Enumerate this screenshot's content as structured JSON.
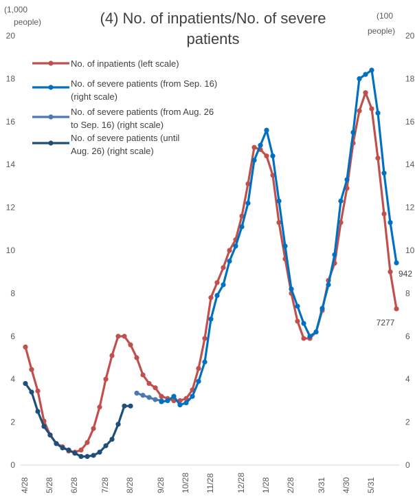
{
  "chart_data": {
    "type": "line",
    "title": [
      "(4) No. of inpatients/No. of severe",
      "patients"
    ],
    "left_axis_unit": [
      "(1,000",
      "people)"
    ],
    "right_axis_unit": [
      "(100",
      "people)"
    ],
    "ylim": [
      0,
      20
    ],
    "left_ticks": [
      "0",
      "2",
      "4",
      "6",
      "8",
      "10",
      "12",
      "14",
      "16",
      "18",
      "20"
    ],
    "right_ticks": [
      "0",
      "2",
      "4",
      "6",
      "8",
      "10",
      "12",
      "14",
      "16",
      "18",
      "20"
    ],
    "x_labels": [
      {
        "label": "4/28",
        "index": 0
      },
      {
        "label": "5/28",
        "index": 4
      },
      {
        "label": "6/28",
        "index": 8
      },
      {
        "label": "7/28",
        "index": 13
      },
      {
        "label": "8/28",
        "index": 17
      },
      {
        "label": "9/28",
        "index": 22
      },
      {
        "label": "10/28",
        "index": 26
      },
      {
        "label": "11/28",
        "index": 30
      },
      {
        "label": "12/28",
        "index": 35
      },
      {
        "label": "1/28",
        "index": 39
      },
      {
        "label": "2/28",
        "index": 43
      },
      {
        "label": "3/31",
        "index": 48
      },
      {
        "label": "4/30",
        "index": 52
      },
      {
        "label": "5/31",
        "index": 56
      }
    ],
    "grid": false,
    "legend_position": "top-left",
    "series": [
      {
        "key": "inpatients",
        "name": "No. of inpatients (left scale)",
        "color": "#c0504d",
        "start_index": 0,
        "values": [
          5.5,
          4.45,
          3.45,
          2.05,
          1.4,
          1.0,
          0.85,
          0.65,
          0.6,
          0.7,
          1.05,
          1.7,
          2.7,
          4.0,
          5.1,
          6.0,
          6.0,
          5.6,
          5.0,
          4.2,
          3.8,
          3.6,
          3.2,
          3.1,
          3.0,
          3.0,
          3.1,
          3.5,
          4.5,
          5.9,
          7.8,
          8.5,
          9.2,
          10.0,
          10.5,
          11.6,
          13.1,
          14.8,
          14.7,
          14.4,
          13.5,
          11.3,
          9.6,
          8.0,
          6.7,
          5.9,
          5.9,
          6.2,
          7.2,
          8.6,
          9.4,
          11.3,
          12.9,
          15.0,
          16.5,
          17.35,
          16.6,
          14.3,
          11.7,
          9.0,
          7.277
        ],
        "end_label": "7277"
      },
      {
        "key": "severe_from_sep16",
        "name": "No. of severe patients (from Sep. 16) (right scale)",
        "color": "#0070c0",
        "start_index": 22,
        "values": [
          2.95,
          3.0,
          3.2,
          2.8,
          2.9,
          3.2,
          3.9,
          4.8,
          6.8,
          7.9,
          8.4,
          9.5,
          10.2,
          11.1,
          12.2,
          14.2,
          14.9,
          15.6,
          14.4,
          12.3,
          10.2,
          8.2,
          7.4,
          6.6,
          6.0,
          6.2,
          7.3,
          8.4,
          9.8,
          12.3,
          13.3,
          15.5,
          18.0,
          18.2,
          18.4,
          16.4,
          13.6,
          11.3,
          9.42
        ],
        "end_label": "942"
      },
      {
        "key": "severe_aug26_sep16",
        "name": "No. of severe patients (from Aug. 26 to Sep. 16) (right scale)",
        "color": "#4a78b0",
        "start_index": 18,
        "values": [
          3.35,
          3.25,
          3.15,
          3.05,
          3.0
        ]
      },
      {
        "key": "severe_until_aug26",
        "name": "No. of severe patients (until Aug. 26) (right scale)",
        "color": "#1f4e79",
        "start_index": 0,
        "values": [
          3.8,
          3.4,
          2.5,
          1.8,
          1.4,
          1.0,
          0.8,
          0.7,
          0.55,
          0.4,
          0.4,
          0.45,
          0.6,
          0.9,
          1.2,
          1.9,
          2.75,
          2.75
        ]
      }
    ],
    "legend": [
      {
        "series": "inpatients",
        "lines": [
          "No. of inpatients (left scale)"
        ]
      },
      {
        "series": "severe_from_sep16",
        "lines": [
          "No. of severe patients (from Sep. 16)",
          "(right scale)"
        ]
      },
      {
        "series": "severe_aug26_sep16",
        "lines": [
          "No. of severe patients (from Aug. 26",
          "to Sep. 16) (right scale)"
        ]
      },
      {
        "series": "severe_until_aug26",
        "lines": [
          "No. of severe patients (until",
          "Aug. 26) (right scale)"
        ]
      }
    ]
  }
}
